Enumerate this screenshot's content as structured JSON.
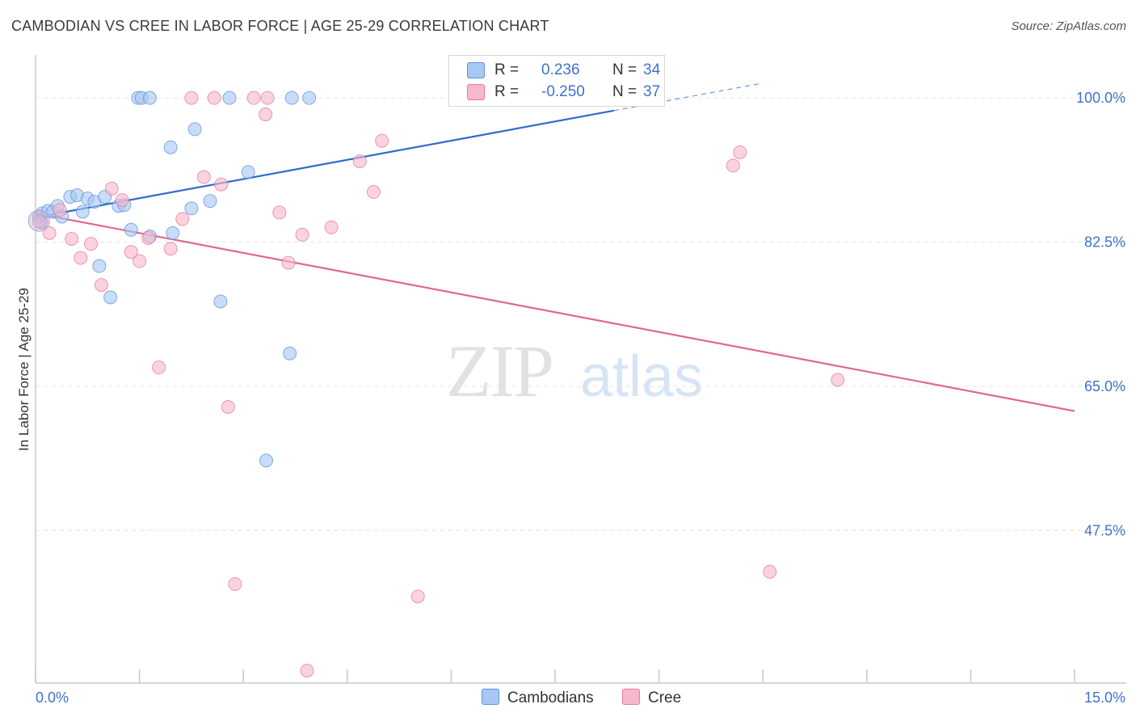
{
  "title": "CAMBODIAN VS CREE IN LABOR FORCE | AGE 25-29 CORRELATION CHART",
  "source": "Source: ZipAtlas.com",
  "watermark": {
    "part1": "ZIP",
    "part2": "atlas"
  },
  "legend_top": [
    {
      "r_label": "R =",
      "r_value": "0.236",
      "n_label": "N =",
      "n_value": "34",
      "color": "#a8c8f4"
    },
    {
      "r_label": "R =",
      "r_value": "-0.250",
      "n_label": "N =",
      "n_value": "37",
      "color": "#f7b8cb"
    }
  ],
  "legend_bottom": [
    {
      "label": "Cambodians",
      "color": "#a8c8f4"
    },
    {
      "label": "Cree",
      "color": "#f7b8cb"
    }
  ],
  "chart_data": {
    "type": "scatter",
    "title": "CAMBODIAN VS CREE IN LABOR FORCE | AGE 25-29 CORRELATION CHART",
    "xlabel": "",
    "ylabel": "In Labor Force | Age 25-29",
    "xlim": [
      0,
      15
    ],
    "ylim": [
      29,
      106
    ],
    "x_tick_labels": [
      "0.0%",
      "15.0%"
    ],
    "y_ticks": [
      47.5,
      65.0,
      82.5,
      100.0
    ],
    "y_tick_labels": [
      "47.5%",
      "65.0%",
      "82.5%",
      "100.0%"
    ],
    "grid": true,
    "series": [
      {
        "name": "Cambodians",
        "color": "#5b93d9",
        "fill": "#a8c8f4",
        "points": [
          [
            0.05,
            85.6
          ],
          [
            0.08,
            84.9
          ],
          [
            0.1,
            86.0
          ],
          [
            0.18,
            86.3
          ],
          [
            0.25,
            86.2
          ],
          [
            0.32,
            86.9
          ],
          [
            0.38,
            85.6
          ],
          [
            0.5,
            88.0
          ],
          [
            0.6,
            88.2
          ],
          [
            0.68,
            86.2
          ],
          [
            0.75,
            87.8
          ],
          [
            0.85,
            87.4
          ],
          [
            0.92,
            79.6
          ],
          [
            1.0,
            88.0
          ],
          [
            1.08,
            75.8
          ],
          [
            1.2,
            86.9
          ],
          [
            1.28,
            87.0
          ],
          [
            1.38,
            84.0
          ],
          [
            1.48,
            100.0
          ],
          [
            1.53,
            100.0
          ],
          [
            1.65,
            100.0
          ],
          [
            1.65,
            83.2
          ],
          [
            1.95,
            94.0
          ],
          [
            1.98,
            83.6
          ],
          [
            2.25,
            86.6
          ],
          [
            2.3,
            96.2
          ],
          [
            2.52,
            87.5
          ],
          [
            2.67,
            75.3
          ],
          [
            2.8,
            100.0
          ],
          [
            3.07,
            91.0
          ],
          [
            3.33,
            56.0
          ],
          [
            3.67,
            69.0
          ],
          [
            3.7,
            100.0
          ],
          [
            3.95,
            100.0
          ]
        ]
      },
      {
        "name": "Cree",
        "color": "#e8799c",
        "fill": "#f7b8cb",
        "points": [
          [
            0.05,
            85.0
          ],
          [
            0.2,
            83.6
          ],
          [
            0.35,
            86.4
          ],
          [
            0.52,
            82.9
          ],
          [
            0.65,
            80.6
          ],
          [
            0.8,
            82.3
          ],
          [
            0.95,
            77.3
          ],
          [
            1.1,
            89.0
          ],
          [
            1.25,
            87.6
          ],
          [
            1.38,
            81.3
          ],
          [
            1.5,
            80.2
          ],
          [
            1.63,
            83.0
          ],
          [
            1.78,
            67.3
          ],
          [
            1.95,
            81.7
          ],
          [
            2.12,
            85.3
          ],
          [
            2.25,
            100.0
          ],
          [
            2.43,
            90.4
          ],
          [
            2.58,
            100.0
          ],
          [
            2.68,
            89.5
          ],
          [
            2.78,
            62.5
          ],
          [
            2.88,
            41.0
          ],
          [
            3.15,
            100.0
          ],
          [
            3.32,
            98.0
          ],
          [
            3.35,
            100.0
          ],
          [
            3.52,
            86.1
          ],
          [
            3.65,
            80.0
          ],
          [
            3.85,
            83.4
          ],
          [
            3.92,
            30.5
          ],
          [
            4.27,
            84.3
          ],
          [
            4.68,
            92.3
          ],
          [
            4.88,
            88.6
          ],
          [
            5.0,
            94.8
          ],
          [
            5.52,
            39.5
          ],
          [
            10.07,
            91.8
          ],
          [
            10.17,
            93.4
          ],
          [
            10.6,
            42.5
          ],
          [
            11.58,
            65.8
          ]
        ]
      }
    ],
    "trendlines": [
      {
        "series": "Cambodians",
        "r": 0.236,
        "n": 34,
        "x_start": 0.0,
        "y_start": 85.5,
        "x_end_solid": 8.35,
        "x_end_dashed": 10.5,
        "y_end": 101.8
      },
      {
        "series": "Cree",
        "r": -0.25,
        "n": 37,
        "x_start": 0.0,
        "y_start": 86.0,
        "x_end": 15.0,
        "y_end": 62.0
      }
    ]
  }
}
